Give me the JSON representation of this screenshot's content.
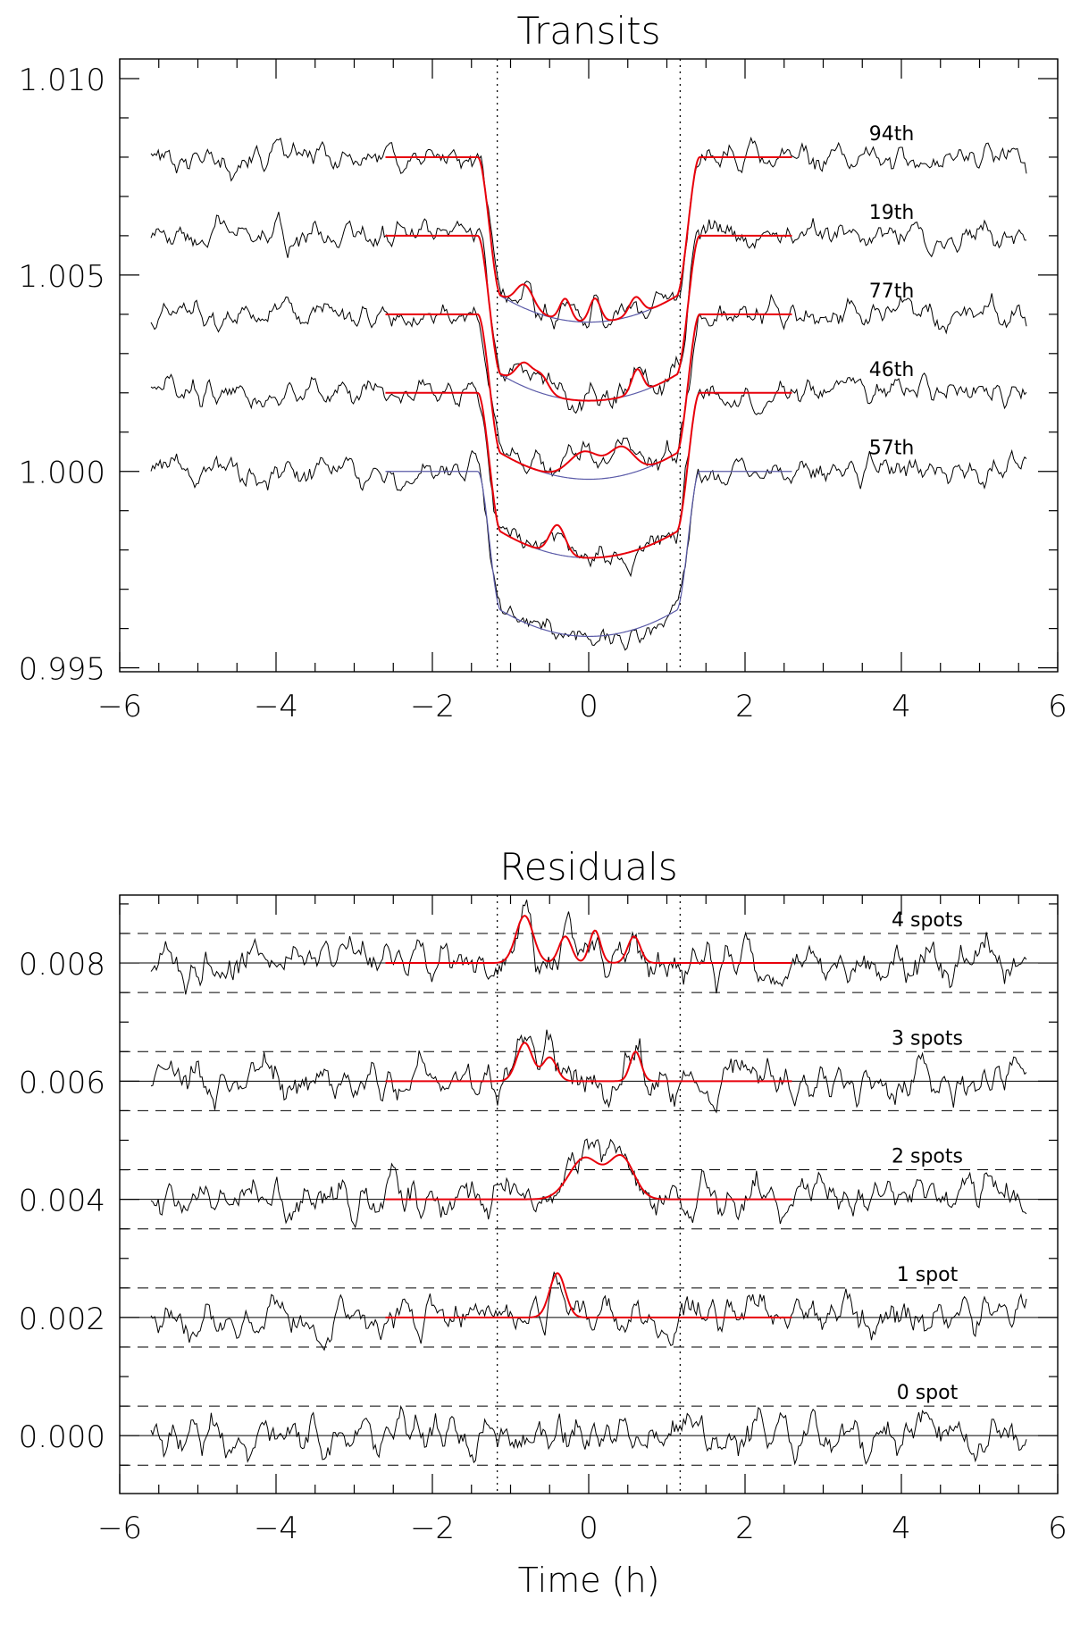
{
  "chart_data": [
    {
      "type": "line",
      "title": "Transits",
      "xlabel": "",
      "ylabel": "",
      "xlim": [
        -6,
        6
      ],
      "ylim": [
        0.9949,
        1.0105
      ],
      "xticks": [
        "−6",
        "−4",
        "−2",
        "0",
        "2",
        "4",
        "6"
      ],
      "yticks": [
        "0.995",
        "1.000",
        "1.005",
        "1.010"
      ],
      "contacts_h": [
        -1.17,
        1.17
      ],
      "series": [
        {
          "name": "94th",
          "baseline": 1.008,
          "depth": 0.0042,
          "spots": [
            [
              -0.82,
              0.0006,
              0.11
            ],
            [
              -0.3,
              0.00055,
              0.07
            ],
            [
              0.08,
              0.0006,
              0.07
            ],
            [
              0.6,
              0.00045,
              0.08
            ]
          ]
        },
        {
          "name": "19th",
          "baseline": 1.006,
          "depth": 0.0042,
          "spots": [
            [
              -0.82,
              0.0006,
              0.11
            ],
            [
              -0.6,
              0.0004,
              0.09
            ],
            [
              0.62,
              0.0006,
              0.07
            ]
          ]
        },
        {
          "name": "77th",
          "baseline": 1.004,
          "depth": 0.0042,
          "spots": [
            [
              -0.05,
              0.0007,
              0.2
            ],
            [
              0.42,
              0.0007,
              0.16
            ]
          ]
        },
        {
          "name": "46th",
          "baseline": 1.002,
          "depth": 0.0042,
          "spots": [
            [
              -0.4,
              0.00075,
              0.1
            ]
          ]
        },
        {
          "name": "57th",
          "baseline": 1.0,
          "depth": 0.0042,
          "spots": []
        }
      ]
    },
    {
      "type": "line",
      "title": "Residuals",
      "xlabel": "Time (h)",
      "ylabel": "",
      "xlim": [
        -6,
        6
      ],
      "ylim": [
        -0.00098,
        0.00915
      ],
      "xticks": [
        "−6",
        "−4",
        "−2",
        "0",
        "2",
        "4",
        "6"
      ],
      "yticks": [
        "0.000",
        "0.002",
        "0.004",
        "0.006",
        "0.008"
      ],
      "contacts_h": [
        -1.17,
        1.17
      ],
      "series": [
        {
          "name": "4 spots",
          "offset": 0.008,
          "spots": [
            [
              -0.82,
              0.0008,
              0.11
            ],
            [
              -0.3,
              0.00045,
              0.08
            ],
            [
              0.08,
              0.00055,
              0.07
            ],
            [
              0.58,
              0.00045,
              0.08
            ]
          ]
        },
        {
          "name": "3 spots",
          "offset": 0.006,
          "spots": [
            [
              -0.82,
              0.00065,
              0.1
            ],
            [
              -0.5,
              0.0004,
              0.09
            ],
            [
              0.6,
              0.0005,
              0.07
            ]
          ]
        },
        {
          "name": "2 spots",
          "offset": 0.004,
          "spots": [
            [
              -0.05,
              0.0007,
              0.2
            ],
            [
              0.42,
              0.0007,
              0.16
            ]
          ]
        },
        {
          "name": "1 spot",
          "offset": 0.002,
          "spots": [
            [
              -0.4,
              0.00075,
              0.1
            ]
          ]
        },
        {
          "name": "0 spot",
          "offset": 0.0,
          "spots": []
        }
      ]
    }
  ]
}
